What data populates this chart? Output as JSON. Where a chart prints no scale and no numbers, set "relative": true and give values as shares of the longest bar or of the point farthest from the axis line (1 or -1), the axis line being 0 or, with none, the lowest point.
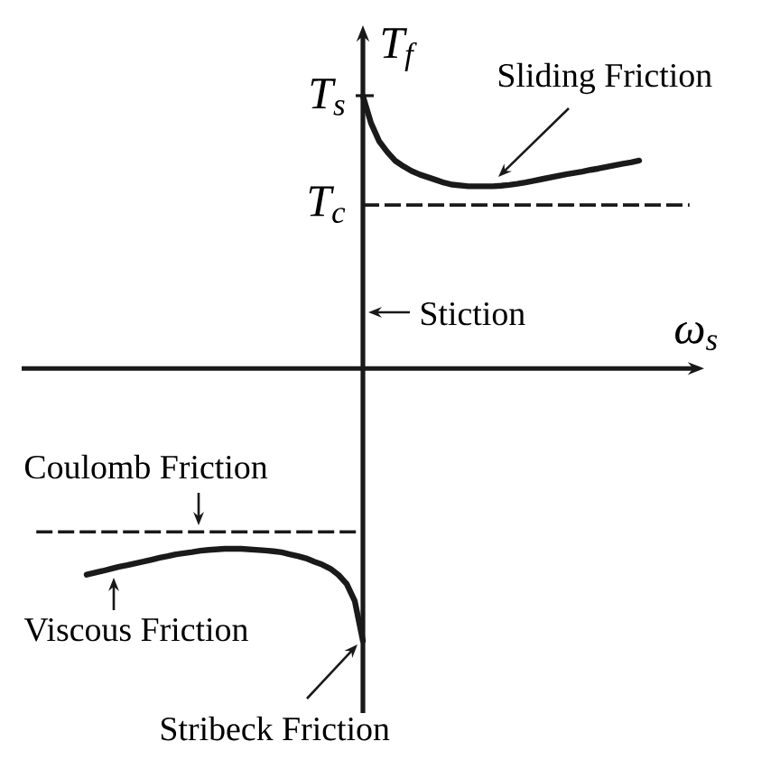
{
  "chart_data": {
    "type": "line",
    "relative": true,
    "xlabel": "ω$_{s}$",
    "ylabel": "T$_{f}$",
    "categories": [
      null,
      null,
      null,
      null,
      null,
      null,
      null,
      null,
      null,
      null,
      null,
      null,
      null,
      null,
      null,
      null,
      null,
      null,
      null,
      null,
      null,
      null,
      null,
      null,
      null,
      null,
      null,
      null,
      null,
      null,
      null,
      null,
      null,
      null,
      null,
      null,
      null,
      null,
      null,
      null,
      null,
      null,
      null,
      null,
      null,
      null,
      null,
      null,
      null,
      null,
      null,
      null,
      null,
      null,
      null,
      null,
      null,
      null,
      null,
      null,
      null,
      null,
      null,
      null,
      null,
      null,
      null,
      null,
      null,
      null,
      null,
      null,
      null,
      null,
      null,
      null,
      null,
      null,
      null,
      null,
      null,
      null,
      null,
      null,
      null
    ],
    "series": [
      {
        "color": "#1a1a1a",
        "values": [
          null,
          null,
          null,
          null,
          null,
          null,
          null,
          null,
          null,
          null,
          null,
          null,
          null,
          null,
          null,
          null,
          null,
          null,
          null,
          null,
          null,
          null,
          null,
          null,
          null,
          null,
          null,
          null,
          null,
          null,
          null,
          null,
          null,
          null,
          null,
          null,
          null,
          null,
          null,
          null,
          null,
          null,
          1,
          0.901,
          0.834,
          0.795,
          0.762,
          0.742,
          0.725,
          0.712,
          0.702,
          0.692,
          0.682,
          0.675,
          0.672,
          0.669,
          0.669,
          0.669,
          0.669,
          0.671,
          0.674,
          0.678,
          0.683,
          0.689,
          0.695,
          0.701,
          0.707,
          0.713,
          0.718,
          0.723,
          0.729,
          0.734,
          0.74,
          0.746,
          0.752,
          0.757,
          0.763,
          null,
          null,
          null,
          null,
          null,
          null,
          null,
          null
        ]
      },
      {
        "color": "#1a1a1a",
        "values": [
          null,
          null,
          null,
          null,
          null,
          null,
          null,
          null,
          -0.757,
          -0.75,
          -0.743,
          -0.735,
          -0.728,
          -0.722,
          -0.715,
          -0.709,
          -0.702,
          -0.695,
          -0.689,
          -0.682,
          -0.678,
          -0.674,
          -0.669,
          -0.666,
          -0.664,
          -0.662,
          -0.662,
          -0.662,
          -0.664,
          -0.666,
          -0.668,
          -0.671,
          -0.675,
          -0.682,
          -0.689,
          -0.697,
          -0.709,
          -0.72,
          -0.735,
          -0.758,
          -0.791,
          -0.854,
          -1,
          null,
          null,
          null,
          null,
          null,
          null,
          null,
          null,
          null,
          null,
          null,
          null,
          null,
          null,
          null,
          null,
          null,
          null,
          null,
          null,
          null,
          null,
          null,
          null,
          null,
          null,
          null,
          null,
          null,
          null,
          null,
          null,
          null,
          null,
          null,
          null,
          null,
          null,
          null,
          null,
          null,
          null
        ]
      }
    ],
    "ref_lines": [
      {
        "axis": "y",
        "value": 0.6,
        "label": "T$_{c}$",
        "color": "#1a1a1a",
        "line_style": "dashed"
      },
      {
        "axis": "y",
        "value": -0.6,
        "color": "#1a1a1a",
        "line_style": "dashed"
      }
    ],
    "annotations": [
      "T$_{s}$",
      "Sliding Friction",
      "Stiction",
      "Coulomb Friction",
      "Viscous Friction",
      "Stribeck Friction"
    ],
    "marker": "none",
    "line_style": "solid"
  }
}
